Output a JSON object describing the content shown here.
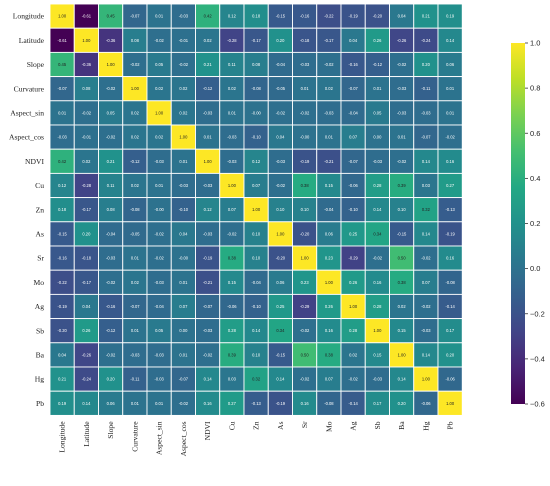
{
  "chart_data": {
    "type": "heatmap",
    "title": "",
    "xlabel": "",
    "ylabel": "",
    "labels": [
      "Longitude",
      "Latitude",
      "Slope",
      "Curvature",
      "Aspect_sin",
      "Aspect_cos",
      "NDVI",
      "Cu",
      "Zn",
      "As",
      "Sr",
      "Mo",
      "Ag",
      "Sb",
      "Ba",
      "Hg",
      "Pb"
    ],
    "matrix": [
      [
        1.0,
        -0.61,
        0.45,
        -0.07,
        0.01,
        -0.03,
        0.42,
        0.12,
        0.18,
        -0.15,
        -0.16,
        -0.22,
        -0.19,
        -0.2,
        0.04,
        0.21,
        0.19
      ],
      [
        -0.61,
        1.0,
        -0.36,
        0.08,
        -0.02,
        -0.01,
        0.02,
        -0.28,
        -0.17,
        0.2,
        -0.18,
        -0.17,
        0.04,
        0.26,
        -0.26,
        -0.24,
        0.14
      ],
      [
        0.45,
        -0.36,
        1.0,
        -0.02,
        0.05,
        -0.02,
        0.21,
        0.11,
        0.08,
        -0.04,
        -0.03,
        -0.02,
        -0.16,
        -0.12,
        -0.02,
        0.2,
        0.06
      ],
      [
        -0.07,
        0.08,
        -0.02,
        1.0,
        0.02,
        0.02,
        -0.12,
        0.02,
        -0.08,
        -0.05,
        0.01,
        0.02,
        -0.07,
        0.01,
        -0.03,
        -0.11,
        0.01
      ],
      [
        0.01,
        -0.02,
        0.05,
        0.02,
        1.0,
        0.02,
        -0.03,
        0.01,
        -0.0,
        -0.02,
        -0.02,
        -0.03,
        -0.04,
        0.05,
        -0.03,
        -0.03,
        0.01
      ],
      [
        -0.03,
        -0.01,
        -0.02,
        0.02,
        0.02,
        1.0,
        0.01,
        -0.03,
        -0.1,
        0.04,
        -0.0,
        0.01,
        0.07,
        0.0,
        0.01,
        -0.07,
        -0.02
      ],
      [
        0.42,
        0.02,
        0.21,
        -0.12,
        -0.03,
        0.01,
        1.0,
        -0.03,
        0.12,
        -0.03,
        -0.19,
        -0.21,
        -0.07,
        -0.03,
        -0.02,
        0.14,
        0.16
      ],
      [
        0.12,
        -0.28,
        0.11,
        0.02,
        0.01,
        -0.03,
        -0.03,
        1.0,
        0.07,
        -0.02,
        0.38,
        0.15,
        -0.06,
        0.28,
        0.39,
        0.03,
        0.27
      ],
      [
        0.18,
        -0.17,
        0.08,
        -0.08,
        -0.0,
        -0.1,
        0.12,
        0.07,
        1.0,
        0.1,
        0.1,
        -0.04,
        -0.1,
        0.14,
        0.1,
        0.32,
        -0.13
      ],
      [
        -0.15,
        0.2,
        -0.04,
        -0.05,
        -0.02,
        0.04,
        -0.03,
        -0.02,
        0.1,
        1.0,
        -0.2,
        0.06,
        0.25,
        0.34,
        -0.15,
        0.14,
        -0.19
      ],
      [
        -0.16,
        -0.18,
        -0.03,
        0.01,
        -0.02,
        -0.0,
        -0.19,
        0.38,
        0.1,
        -0.2,
        1.0,
        0.23,
        -0.29,
        -0.02,
        0.5,
        -0.02,
        0.16
      ],
      [
        -0.22,
        -0.17,
        -0.02,
        0.02,
        -0.03,
        0.01,
        -0.21,
        0.15,
        -0.04,
        0.06,
        0.23,
        1.0,
        0.26,
        0.16,
        0.38,
        0.07,
        -0.08
      ],
      [
        -0.19,
        0.04,
        -0.16,
        -0.07,
        -0.04,
        0.07,
        -0.07,
        -0.06,
        -0.1,
        0.25,
        -0.29,
        0.26,
        1.0,
        0.28,
        0.02,
        -0.02,
        -0.14
      ],
      [
        -0.2,
        0.26,
        -0.12,
        0.01,
        0.05,
        0.0,
        -0.03,
        0.28,
        0.14,
        0.34,
        -0.02,
        0.16,
        0.28,
        1.0,
        0.15,
        -0.03,
        0.17
      ],
      [
        0.04,
        -0.26,
        -0.02,
        -0.03,
        -0.03,
        0.01,
        -0.02,
        0.39,
        0.1,
        -0.15,
        0.5,
        0.38,
        0.02,
        0.15,
        1.0,
        0.14,
        0.2
      ],
      [
        0.21,
        -0.24,
        0.2,
        -0.11,
        -0.03,
        -0.07,
        0.14,
        0.03,
        0.32,
        0.14,
        -0.02,
        0.07,
        -0.02,
        -0.03,
        0.14,
        1.0,
        -0.06
      ],
      [
        0.19,
        0.14,
        0.06,
        0.01,
        0.01,
        -0.02,
        0.16,
        0.27,
        -0.13,
        -0.19,
        0.16,
        -0.08,
        -0.14,
        0.17,
        0.2,
        -0.06,
        1.0
      ]
    ],
    "value_range": [
      -0.6,
      1.0
    ],
    "colorbar": {
      "colormap": "viridis",
      "ticks": [
        1.0,
        0.8,
        0.6,
        0.4,
        0.2,
        0.0,
        -0.2,
        -0.4,
        -0.6
      ],
      "tick_labels": [
        "1.0",
        "0.8",
        "0.6",
        "0.4",
        "0.2",
        "0.0",
        "−0.2",
        "−0.4",
        "−0.6"
      ]
    },
    "grid": true,
    "legend": "colorbar-right"
  }
}
